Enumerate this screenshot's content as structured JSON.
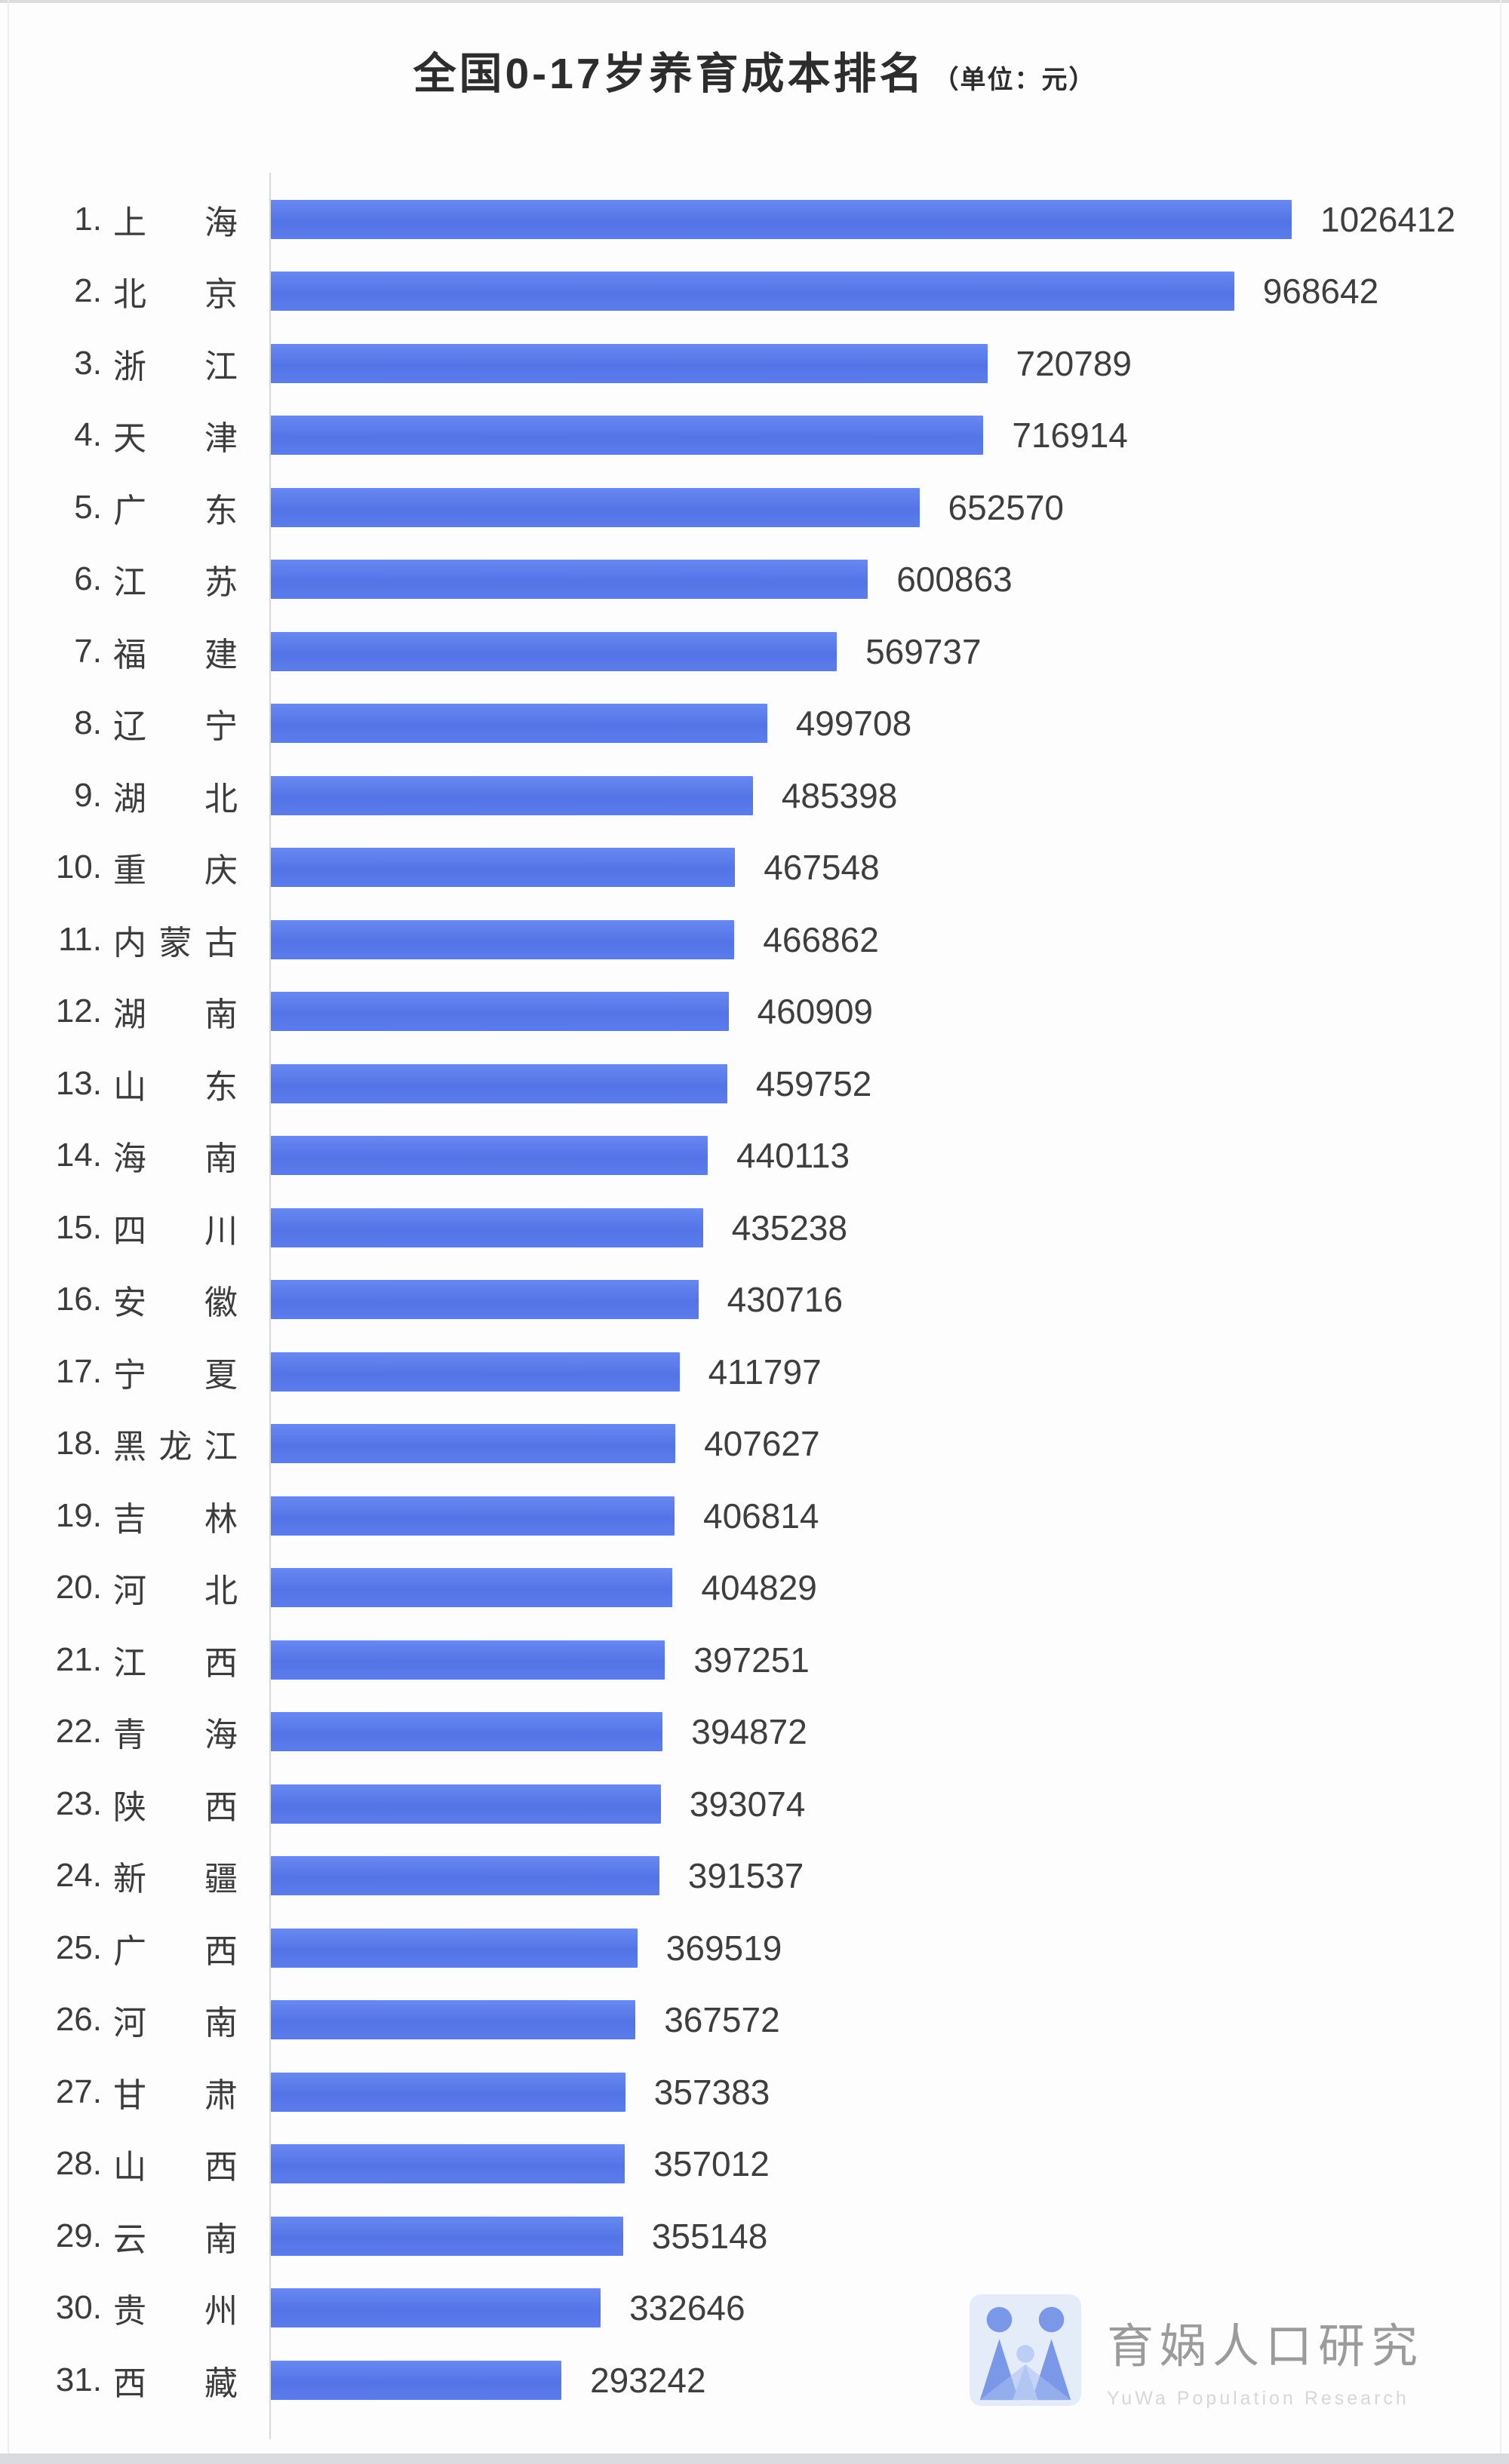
{
  "chart_data": {
    "type": "bar",
    "orientation": "horizontal",
    "title": "全国0-17岁养育成本排名",
    "unit_label": "（单位：元）",
    "unit": "元",
    "rank_labels": [
      "1.",
      "2.",
      "3.",
      "4.",
      "5.",
      "6.",
      "7.",
      "8.",
      "9.",
      "10.",
      "11.",
      "12.",
      "13.",
      "14.",
      "15.",
      "16.",
      "17.",
      "18.",
      "19.",
      "20.",
      "21.",
      "22.",
      "23.",
      "24.",
      "25.",
      "26.",
      "27.",
      "28.",
      "29.",
      "30.",
      "31."
    ],
    "categories": [
      "上海",
      "北京",
      "浙江",
      "天津",
      "广东",
      "江苏",
      "福建",
      "辽宁",
      "湖北",
      "重庆",
      "内蒙古",
      "湖南",
      "山东",
      "海南",
      "四川",
      "安徽",
      "宁夏",
      "黑龙江",
      "吉林",
      "河北",
      "江西",
      "青海",
      "陕西",
      "新疆",
      "广西",
      "河南",
      "甘肃",
      "山西",
      "云南",
      "贵州",
      "西藏"
    ],
    "values": [
      1026412,
      968642,
      720789,
      716914,
      652570,
      600863,
      569737,
      499708,
      485398,
      467548,
      466862,
      460909,
      459752,
      440113,
      435238,
      430716,
      411797,
      407627,
      406814,
      404829,
      397251,
      394872,
      393074,
      391537,
      369519,
      367572,
      357383,
      357012,
      355148,
      332646,
      293242
    ],
    "xlim": [
      0,
      1026412
    ],
    "value_labels_shown": true,
    "grid": false,
    "legend": "none",
    "colors": {
      "bar": "#5778e9",
      "axis_line": "#d8d8d8",
      "label_text": "#3c3c3c",
      "title_text": "#2d2d2d"
    }
  },
  "footer": {
    "brand": "育娲人口研究",
    "tagline": "YuWa Population Research"
  }
}
